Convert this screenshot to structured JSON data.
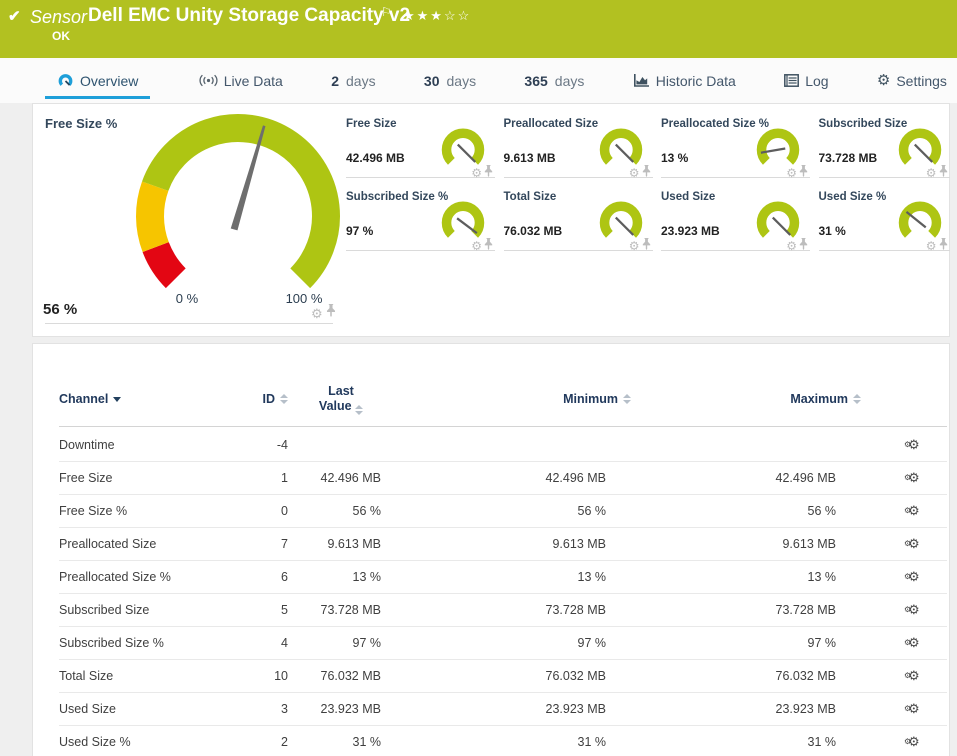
{
  "colors": {
    "header_green": "#b2c121",
    "gauge_green": "#aec513",
    "warn_yellow": "#f6c500",
    "alarm_red": "#e30613",
    "accent_blue": "#1e9fd9",
    "needle_gray": "#6e6e6e"
  },
  "header": {
    "category": "Sensor",
    "title": "Dell EMC Unity Storage Capacity v2",
    "flag": "⚐",
    "stars": "★★★☆☆",
    "status": "OK",
    "check": "✔"
  },
  "tabs": [
    {
      "label": "Overview",
      "icon": "gauge-icon",
      "active": true
    },
    {
      "label": "Live Data",
      "icon": "live-data-icon"
    },
    {
      "strong": "2",
      "label": "days"
    },
    {
      "strong": "30",
      "label": "days"
    },
    {
      "strong": "365",
      "label": "days"
    },
    {
      "label": "Historic Data",
      "icon": "historic-data-icon"
    },
    {
      "label": "Log",
      "icon": "log-icon"
    },
    {
      "label": "Settings",
      "icon": "settings-gear-icon"
    },
    {
      "gear_glyph": "⚙"
    }
  ],
  "main_gauge": {
    "title": "Free Size %",
    "value": "56 %",
    "scale_min": "0 %",
    "scale_max": "100 %",
    "pct": 0.56,
    "segments": [
      {
        "color": "#e30613",
        "from": 0,
        "to": 0.09
      },
      {
        "color": "#f6c500",
        "from": 0.09,
        "to": 0.24
      },
      {
        "color": "#aec513",
        "from": 0.24,
        "to": 1
      }
    ]
  },
  "small_gauges": [
    {
      "title": "Free Size",
      "value": "42.496 MB",
      "pct": 1
    },
    {
      "title": "Preallocated Size",
      "value": "9.613 MB",
      "pct": 1
    },
    {
      "title": "Preallocated Size %",
      "value": "13 %",
      "pct": 0.13
    },
    {
      "title": "Subscribed Size",
      "value": "73.728 MB",
      "pct": 1
    },
    {
      "title": "Subscribed Size %",
      "value": "97 %",
      "pct": 0.97
    },
    {
      "title": "Total Size",
      "value": "76.032 MB",
      "pct": 1
    },
    {
      "title": "Used Size",
      "value": "23.923 MB",
      "pct": 1
    },
    {
      "title": "Used Size %",
      "value": "31 %",
      "pct": 0.31
    }
  ],
  "table": {
    "headers": {
      "channel": "Channel",
      "id": "ID",
      "last_line1": "Last",
      "last_line2": "Value",
      "minimum": "Minimum",
      "maximum": "Maximum"
    },
    "rows": [
      {
        "channel": "Downtime",
        "id": "-4",
        "last": "",
        "min": "",
        "max": ""
      },
      {
        "channel": "Free Size",
        "id": "1",
        "last": "42.496 MB",
        "min": "42.496 MB",
        "max": "42.496 MB"
      },
      {
        "channel": "Free Size %",
        "id": "0",
        "last": "56 %",
        "min": "56 %",
        "max": "56 %"
      },
      {
        "channel": "Preallocated Size",
        "id": "7",
        "last": "9.613 MB",
        "min": "9.613 MB",
        "max": "9.613 MB"
      },
      {
        "channel": "Preallocated Size %",
        "id": "6",
        "last": "13 %",
        "min": "13 %",
        "max": "13 %"
      },
      {
        "channel": "Subscribed Size",
        "id": "5",
        "last": "73.728 MB",
        "min": "73.728 MB",
        "max": "73.728 MB"
      },
      {
        "channel": "Subscribed Size %",
        "id": "4",
        "last": "97 %",
        "min": "97 %",
        "max": "97 %"
      },
      {
        "channel": "Total Size",
        "id": "10",
        "last": "76.032 MB",
        "min": "76.032 MB",
        "max": "76.032 MB"
      },
      {
        "channel": "Used Size",
        "id": "3",
        "last": "23.923 MB",
        "min": "23.923 MB",
        "max": "23.923 MB"
      },
      {
        "channel": "Used Size %",
        "id": "2",
        "last": "31 %",
        "min": "31 %",
        "max": "31 %"
      }
    ]
  }
}
